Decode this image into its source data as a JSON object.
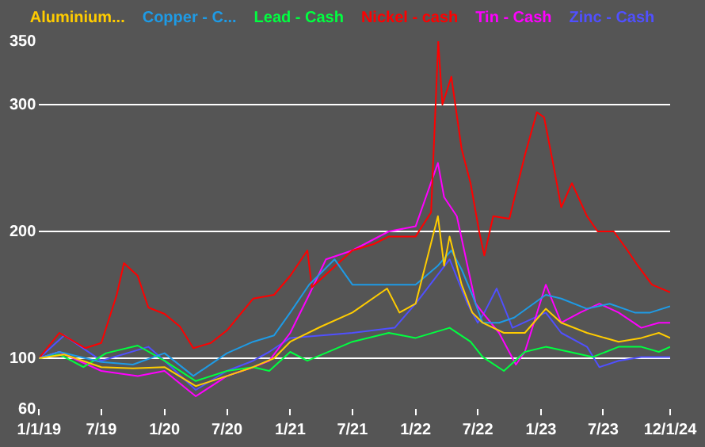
{
  "chart_data": {
    "type": "line",
    "xlim": [
      "2019-01-01",
      "2024-01-12"
    ],
    "xticks": [
      {
        "value": "2019-01-01",
        "label": "1/1/19"
      },
      {
        "value": "2019-07-01",
        "label": "7/19"
      },
      {
        "value": "2020-01-01",
        "label": "1/20"
      },
      {
        "value": "2020-07-01",
        "label": "7/20"
      },
      {
        "value": "2021-01-01",
        "label": "1/21"
      },
      {
        "value": "2021-07-01",
        "label": "7/21"
      },
      {
        "value": "2022-01-01",
        "label": "1/22"
      },
      {
        "value": "2022-07-01",
        "label": "7/22"
      },
      {
        "value": "2023-01-01",
        "label": "1/23"
      },
      {
        "value": "2023-07-01",
        "label": "7/23"
      },
      {
        "value": "2024-01-12",
        "label": "12/1/24"
      }
    ],
    "ylim": [
      60,
      350
    ],
    "yticks": [
      60,
      100,
      200,
      300,
      350
    ],
    "grid": "y",
    "legend": "top",
    "marker": "none",
    "line_style": "solid",
    "series": [
      {
        "name": "Aluminium...",
        "color": "#ffcc00",
        "x": [
          "2019-01-01",
          "2019-03-15",
          "2019-07-01",
          "2019-10-01",
          "2020-01-01",
          "2020-04-01",
          "2020-07-01",
          "2020-09-15",
          "2020-11-15",
          "2021-01-01",
          "2021-04-01",
          "2021-07-01",
          "2021-10-10",
          "2021-11-15",
          "2022-01-01",
          "2022-03-07",
          "2022-03-25",
          "2022-04-10",
          "2022-05-15",
          "2022-06-15",
          "2022-07-15",
          "2022-09-15",
          "2022-11-15",
          "2023-01-15",
          "2023-03-01",
          "2023-05-15",
          "2023-08-15",
          "2023-10-20",
          "2023-12-10",
          "2024-01-12"
        ],
        "values": [
          100,
          103,
          93,
          92,
          93,
          78,
          86,
          93,
          100,
          113,
          125,
          136,
          155,
          136,
          143,
          212,
          173,
          196,
          158,
          136,
          128,
          120,
          120,
          139,
          128,
          120,
          113,
          116,
          120,
          116
        ]
      },
      {
        "name": "Copper - C...",
        "color": "#1e9be6",
        "x": [
          "2019-01-01",
          "2019-03-01",
          "2019-07-01",
          "2019-10-01",
          "2020-01-01",
          "2020-03-25",
          "2020-07-01",
          "2020-09-15",
          "2020-11-15",
          "2021-01-01",
          "2021-02-25",
          "2021-05-10",
          "2021-07-01",
          "2021-10-15",
          "2022-01-01",
          "2022-03-07",
          "2022-04-15",
          "2022-05-15",
          "2022-06-15",
          "2022-07-15",
          "2022-09-01",
          "2022-10-15",
          "2023-01-15",
          "2023-03-01",
          "2023-05-15",
          "2023-07-20",
          "2023-10-01",
          "2023-11-15",
          "2024-01-12"
        ],
        "values": [
          100,
          105,
          97,
          95,
          104,
          86,
          104,
          113,
          118,
          136,
          158,
          178,
          158,
          158,
          158,
          173,
          185,
          170,
          150,
          128,
          128,
          132,
          150,
          147,
          139,
          143,
          136,
          136,
          141
        ]
      },
      {
        "name": "Lead - Cash",
        "color": "#00ff40",
        "x": [
          "2019-01-01",
          "2019-03-01",
          "2019-05-10",
          "2019-07-15",
          "2019-10-15",
          "2020-01-01",
          "2020-04-01",
          "2020-07-01",
          "2020-09-15",
          "2020-11-01",
          "2021-01-01",
          "2021-02-20",
          "2021-07-01",
          "2021-10-15",
          "2022-01-01",
          "2022-04-10",
          "2022-06-10",
          "2022-07-15",
          "2022-09-15",
          "2022-11-15",
          "2023-01-15",
          "2023-03-25",
          "2023-06-01",
          "2023-08-15",
          "2023-10-20",
          "2023-12-10",
          "2024-01-12"
        ],
        "values": [
          100,
          103,
          93,
          104,
          110,
          98,
          82,
          90,
          93,
          90,
          105,
          98,
          113,
          120,
          116,
          124,
          113,
          101,
          90,
          105,
          109,
          105,
          101,
          109,
          109,
          105,
          109
        ]
      },
      {
        "name": "Nickel - cash",
        "color": "#ff0000",
        "x": [
          "2019-01-01",
          "2019-03-01",
          "2019-05-15",
          "2019-07-01",
          "2019-08-15",
          "2019-09-05",
          "2019-10-15",
          "2019-11-15",
          "2020-01-01",
          "2020-02-15",
          "2020-03-25",
          "2020-05-15",
          "2020-07-01",
          "2020-09-15",
          "2020-11-15",
          "2021-01-01",
          "2021-02-20",
          "2021-03-05",
          "2021-05-01",
          "2021-07-01",
          "2021-09-01",
          "2021-10-15",
          "2022-01-01",
          "2022-02-15",
          "2022-03-08",
          "2022-03-20",
          "2022-04-15",
          "2022-05-15",
          "2022-06-10",
          "2022-07-05",
          "2022-07-20",
          "2022-08-15",
          "2022-10-01",
          "2022-11-15",
          "2022-12-20",
          "2023-01-10",
          "2023-02-05",
          "2023-03-01",
          "2023-04-01",
          "2023-05-15",
          "2023-06-15",
          "2023-08-01",
          "2023-09-10",
          "2023-10-10",
          "2023-11-20",
          "2024-01-12"
        ],
        "values": [
          100,
          120,
          108,
          112,
          150,
          175,
          165,
          140,
          135,
          125,
          108,
          112,
          122,
          147,
          150,
          165,
          185,
          156,
          170,
          185,
          190,
          196,
          196,
          215,
          350,
          300,
          322,
          265,
          238,
          200,
          181,
          212,
          210,
          260,
          294,
          290,
          254,
          219,
          238,
          212,
          200,
          200,
          185,
          173,
          158,
          152
        ]
      },
      {
        "name": "Tin - Cash",
        "color": "#ff00ff",
        "x": [
          "2019-01-01",
          "2019-03-01",
          "2019-07-01",
          "2019-10-15",
          "2020-01-01",
          "2020-04-01",
          "2020-07-01",
          "2020-09-15",
          "2020-11-01",
          "2021-01-01",
          "2021-02-25",
          "2021-04-15",
          "2021-07-01",
          "2021-10-15",
          "2022-01-01",
          "2022-03-07",
          "2022-03-25",
          "2022-05-01",
          "2022-06-01",
          "2022-06-25",
          "2022-07-15",
          "2022-09-01",
          "2022-10-20",
          "2022-11-15",
          "2023-01-15",
          "2023-03-01",
          "2023-04-25",
          "2023-06-20",
          "2023-08-15",
          "2023-10-20",
          "2023-12-10",
          "2024-01-12"
        ],
        "values": [
          100,
          105,
          90,
          86,
          90,
          70,
          86,
          93,
          98,
          120,
          150,
          178,
          185,
          200,
          204,
          254,
          227,
          212,
          173,
          143,
          136,
          120,
          95,
          105,
          158,
          128,
          136,
          143,
          136,
          124,
          128,
          128
        ]
      },
      {
        "name": "Zinc - Cash",
        "color": "#5050ff",
        "x": [
          "2019-01-01",
          "2019-03-15",
          "2019-07-01",
          "2019-11-15",
          "2020-01-01",
          "2020-04-01",
          "2020-07-01",
          "2020-09-15",
          "2020-11-01",
          "2021-01-01",
          "2021-07-01",
          "2021-11-01",
          "2022-01-01",
          "2022-04-10",
          "2022-06-01",
          "2022-07-01",
          "2022-07-20",
          "2022-08-25",
          "2022-10-10",
          "2023-01-15",
          "2023-03-01",
          "2023-05-15",
          "2023-06-20",
          "2023-08-15",
          "2023-10-20",
          "2024-01-12"
        ],
        "values": [
          100,
          118,
          98,
          109,
          98,
          75,
          90,
          98,
          105,
          116,
          120,
          124,
          143,
          178,
          143,
          128,
          136,
          155,
          124,
          136,
          120,
          109,
          93,
          98,
          101,
          101
        ]
      }
    ]
  }
}
